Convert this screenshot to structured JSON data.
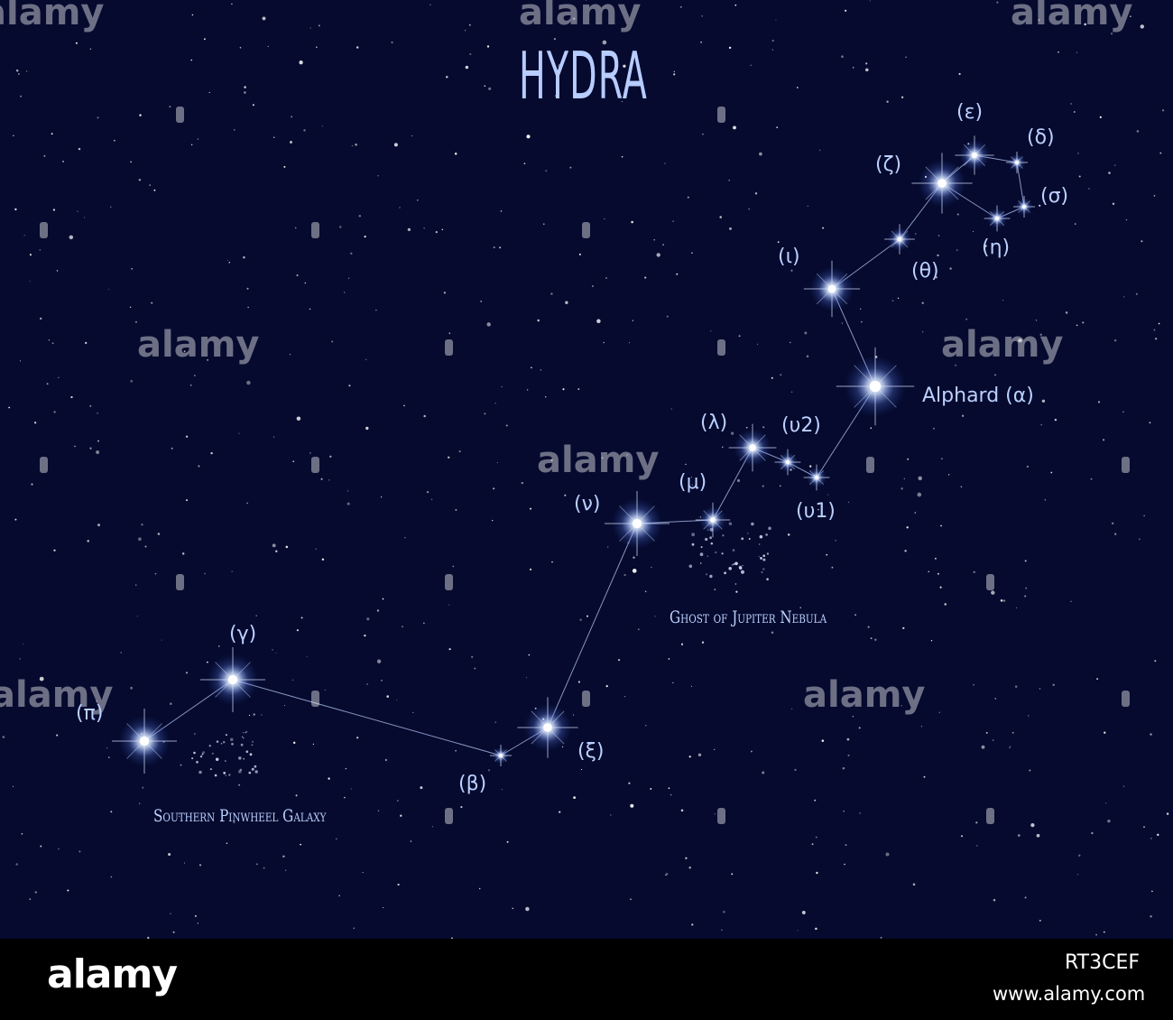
{
  "title": "HYDRA",
  "stars": [
    {
      "label": "(ε)"
    },
    {
      "label": "(δ)"
    },
    {
      "label": "(ζ)"
    },
    {
      "label": "(σ)"
    },
    {
      "label": "(η)"
    },
    {
      "label": "(θ)"
    },
    {
      "label": "(ι)"
    },
    {
      "label": "Alphard (α)"
    },
    {
      "label": "(λ)"
    },
    {
      "label": "(υ2)"
    },
    {
      "label": "(μ)"
    },
    {
      "label": "(ν)"
    },
    {
      "label": "(υ1)"
    },
    {
      "label": "(γ)"
    },
    {
      "label": "(π)"
    },
    {
      "label": "(ξ)"
    },
    {
      "label": "(β)"
    }
  ],
  "deep_sky_objects": [
    {
      "label": "Ghost of Jupiter Nebula"
    },
    {
      "label": "Southern Pinwheel Galaxy"
    }
  ],
  "watermark": "alamy",
  "footer": {
    "logo": "alamy",
    "image_id": "RT3CEF",
    "url": "www.alamy.com"
  },
  "colors": {
    "sky": "#050a2e",
    "label": "#bcd0ff",
    "line": "#a9b8e8",
    "footer": "#000000"
  }
}
